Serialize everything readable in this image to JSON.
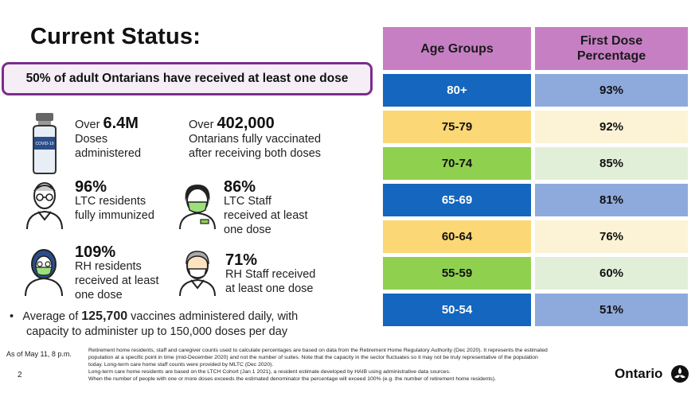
{
  "title": "Current Status:",
  "banner": "50% of adult Ontarians have received at least one dose",
  "stats": {
    "doses": {
      "prefix": "Over ",
      "value": "6.4M",
      "line1": "Doses",
      "line2": "administered"
    },
    "fully": {
      "prefix": "Over ",
      "value": "402,000",
      "line1": "Ontarians fully vaccinated",
      "line2": "after receiving both doses"
    },
    "ltc_res": {
      "value": "96%",
      "line1": "LTC residents",
      "line2": "fully immunized"
    },
    "ltc_staff": {
      "value": "86%",
      "line1": "LTC Staff",
      "line2": "received at least",
      "line3": "one dose"
    },
    "rh_res": {
      "value": "109%",
      "line1": "RH residents",
      "line2": "received at least",
      "line3": "one dose"
    },
    "rh_staff": {
      "value": "71%",
      "line1": "RH Staff received",
      "line2": "at least one dose"
    }
  },
  "bullet": {
    "pre": "Average of ",
    "value": "125,700",
    "post": " vaccines administered daily, with",
    "line2": "capacity to administer up to 150,000 doses per day"
  },
  "as_of": "As of May 11, 8 p.m.",
  "notes": [
    "Retirement home residents, staff and caregiver counts used to calculate percentages are based on data from the Retirement Home Regulatory Authority (Dec 2020). It represents the estimated",
    "population at a specific point in time (mid-December 2020) and not the number of suites. Note that the capacity in the sector fluctuates so it may not be truly representative of the population",
    "today. Long-term care home staff counts were provided by MLTC (Dec 2020).",
    "Long-term care home residents are based on the LTCH Cohort (Jan 1 2021), a resident estimate developed by HAIB using administrative data sources.",
    "When the number of people with one or more doses exceeds the estimated denominator the percentage will exceed 100% (e.g. the number of retirement home residents)."
  ],
  "page_number": "2",
  "brand": "Ontario",
  "vial_label": "COVID-19",
  "table": {
    "header1": "Age Groups",
    "header2a": "First Dose",
    "header2b": "Percentage",
    "rows": [
      {
        "age": "80+",
        "pct": "93%"
      },
      {
        "age": "75-79",
        "pct": "92%"
      },
      {
        "age": "70-74",
        "pct": "85%"
      },
      {
        "age": "65-69",
        "pct": "81%"
      },
      {
        "age": "60-64",
        "pct": "76%"
      },
      {
        "age": "55-59",
        "pct": "60%"
      },
      {
        "age": "50-54",
        "pct": "51%"
      }
    ]
  },
  "colors": {
    "banner_border": "#7b2d8b",
    "header": "#c77fc4",
    "blue": "#1466bf",
    "yellow": "#fcd775",
    "green": "#8fd14f"
  }
}
